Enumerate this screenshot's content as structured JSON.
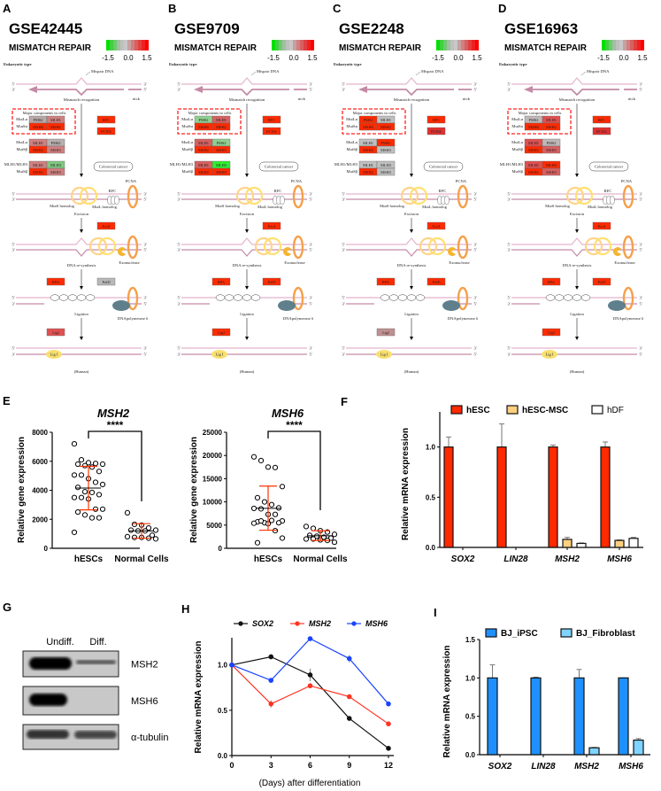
{
  "pathway": {
    "title": "MISMATCH REPAIR",
    "scale_ticks": [
      "-1.5",
      "0.0",
      "1.5"
    ],
    "scale_colors": [
      "#00e000",
      "#40d040",
      "#70c870",
      "#a0c0a0",
      "#c0c0c0",
      "#c8c8c8",
      "#c8a0a0",
      "#d08080",
      "#d86060",
      "#e04040",
      "#f02020",
      "#ff0000"
    ],
    "labels": {
      "eukaryotic": "Eukaryotic type",
      "mispair": "Mispair DNA",
      "nick": "nick",
      "recognition": "Mismatch recognition",
      "major": "Major components in cells",
      "mutla": "MutLα",
      "mutsa": "MutSα",
      "mutsb": "MutSβ",
      "mlh1mlh3": "MLH1/MLH3",
      "colorectal": "Colorectal cancer",
      "pcna_label": "PCNA",
      "rfc_label": "RFC",
      "muts_homolog": "MutS homolog",
      "mutl_homolog": "MutL homolog",
      "excision": "Excision",
      "resynthesis": "DNA re-synthesis",
      "exonuclease": "Exonuclease",
      "ligation": "Ligation",
      "polymerase": "DNApolymerase δ",
      "lig1_protein": "Lig I",
      "human": "(Human)",
      "five": "5'",
      "three": "3'"
    },
    "genes": [
      "PMS2",
      "MLH1",
      "MSH6",
      "MSH2",
      "MLH1",
      "PMS2",
      "MSH2",
      "MSH3",
      "MLH1",
      "MLH3",
      "MSH2",
      "MSH3",
      "RFC",
      "PCNA",
      "ExoI",
      "RPA",
      "PolD",
      "LigI"
    ],
    "panels": [
      {
        "label": "A",
        "dataset": "GSE42445",
        "colors": [
          "#b8a8a8",
          "#d08080",
          "#ff2a00",
          "#ff2a00",
          "#d08080",
          "#b8b0b0",
          "#ff2a00",
          "#d08080",
          "#d08080",
          "#80c880",
          "#ff2a00",
          "#d08080",
          "#ff2a00",
          "#ff2a00",
          "#ff2a00",
          "#ff2a00",
          "#b8b8b8",
          "#e05050"
        ]
      },
      {
        "label": "B",
        "dataset": "GSE9709",
        "colors": [
          "#90d090",
          "#d86060",
          "#ff2a00",
          "#ff2a00",
          "#d86060",
          "#90d090",
          "#ff2a00",
          "#ff2a00",
          "#d86060",
          "#30ee30",
          "#ff2a00",
          "#ff2a00",
          "#ff2a00",
          "#ff2a00",
          "#ff2a00",
          "#ff2a00",
          "#ff2a00",
          "#ff2a00"
        ]
      },
      {
        "label": "C",
        "dataset": "GSE2248",
        "colors": [
          "#ff2a00",
          "#c0c0c0",
          "#ff2a00",
          "#ff2a00",
          "#c0c0c0",
          "#ff2a00",
          "#ff2a00",
          "#c0c0c0",
          "#c0c0c0",
          "#c0c0c0",
          "#ff2a00",
          "#c0c0c0",
          "#ff2a00",
          "#e03030",
          "#ff2a00",
          "#ff2a00",
          "#ff2a00",
          "#c09090"
        ]
      },
      {
        "label": "D",
        "dataset": "GSE16963",
        "colors": [
          "#c0b8b8",
          "#e05050",
          "#ff2a00",
          "#ff2a00",
          "#e05050",
          "#c0b8b8",
          "#ff2a00",
          "#d86060",
          "#e05050",
          "#ff2a00",
          "#ff2a00",
          "#d86060",
          "#ff2a00",
          "#e03030",
          "#ff2a00",
          "#ff2a00",
          "#ff2a00",
          "#ff2a00"
        ]
      }
    ]
  },
  "panel_labels": {
    "E": "E",
    "F": "F",
    "G": "G",
    "H": "H",
    "I": "I"
  },
  "western": {
    "columns": [
      "Undiff.",
      "Diff."
    ],
    "bands": [
      "MSH2",
      "MSH6",
      "α-tubulin"
    ]
  },
  "chart_data": [
    {
      "type": "scatter",
      "title": "MSH2",
      "ylabel": "Relative gene expression",
      "categories": [
        "hESCs",
        "Normal Cells"
      ],
      "ylim": [
        0,
        8000
      ],
      "yticks": [
        "0",
        "2000",
        "4000",
        "6000",
        "8000"
      ],
      "significance": "****",
      "groups": [
        {
          "values": [
            7200,
            6100,
            5900,
            5850,
            5800,
            5800,
            5700,
            5600,
            5300,
            5050,
            5050,
            4800,
            4550,
            4400,
            4200,
            3900,
            3850,
            3700,
            3500,
            3500,
            3400,
            2700,
            2700,
            2500,
            2300,
            2100,
            2100,
            1100
          ],
          "mean": 4150,
          "sd": [
            2650,
            5650
          ]
        },
        {
          "values": [
            2450,
            1650,
            1600,
            1400,
            1250,
            1250,
            1200,
            1200,
            900,
            800,
            750,
            750,
            700,
            650
          ],
          "mean": 1200,
          "sd": [
            700,
            1700
          ]
        }
      ]
    },
    {
      "type": "scatter",
      "title": "MSH6",
      "ylabel": "Relative gene expression",
      "categories": [
        "hESCs",
        "Normal Cells"
      ],
      "ylim": [
        0,
        25000
      ],
      "yticks": [
        "0",
        "5000",
        "10000",
        "15000",
        "20000",
        "25000"
      ],
      "significance": "****",
      "groups": [
        {
          "values": [
            19700,
            18900,
            17500,
            17400,
            13300,
            10900,
            10000,
            9400,
            8700,
            8600,
            8500,
            7300,
            7300,
            5900,
            5700,
            5500,
            6000,
            5500,
            5400,
            5900,
            5300,
            3800,
            2200,
            1200
          ],
          "mean": 8600,
          "sd": [
            3900,
            13400
          ]
        },
        {
          "values": [
            4700,
            4300,
            3800,
            3500,
            3000,
            2800,
            2600,
            2400,
            2200,
            2000,
            2000,
            1800,
            1700,
            1300
          ],
          "mean": 2700,
          "sd": [
            1700,
            3800
          ]
        }
      ]
    },
    {
      "type": "bar",
      "ylabel": "Relative mRNA expression",
      "categories": [
        "SOX2",
        "LIN28",
        "MSH2",
        "MSH6"
      ],
      "ylim": [
        0,
        1.35
      ],
      "yticks": [
        "0.0",
        "0.5",
        "1.0"
      ],
      "legend": "top",
      "series": [
        {
          "name": "hESC",
          "color": "#ff2a00",
          "values": [
            1,
            1,
            1,
            1
          ],
          "errors": [
            0.1,
            0.23,
            0.02,
            0.05
          ]
        },
        {
          "name": "hESC-MSC",
          "color": "#ffd080",
          "values": [
            0,
            0,
            0.08,
            0.07
          ],
          "errors": [
            0,
            0,
            0.02,
            0.005
          ]
        },
        {
          "name": "hDF",
          "color": "#ffffff",
          "values": [
            0,
            0,
            0.04,
            0.09
          ],
          "errors": [
            0,
            0,
            0.005,
            0.01
          ]
        }
      ]
    },
    {
      "type": "line",
      "ylabel": "Relative mRNA expression",
      "xlabel": "(Days) after differentiation",
      "x": [
        0,
        3,
        6,
        9,
        12
      ],
      "xticks": [
        "0",
        "3",
        "6",
        "9",
        "12"
      ],
      "ylim": [
        0,
        1.3
      ],
      "yticks": [
        "0.0",
        "0.5",
        "1.0"
      ],
      "legend": "top",
      "series": [
        {
          "name": "SOX2",
          "color": "#111111",
          "values": [
            1,
            1.09,
            0.89,
            0.41,
            0.08
          ],
          "errors": [
            0.01,
            0.02,
            0.07,
            0.01,
            0.01
          ]
        },
        {
          "name": "MSH2",
          "color": "#ff3322",
          "values": [
            1,
            0.57,
            0.77,
            0.65,
            0.35
          ],
          "errors": [
            0.01,
            0.04,
            0.01,
            0.01,
            0.01
          ]
        },
        {
          "name": "MSH6",
          "color": "#1a44ff",
          "values": [
            1,
            0.83,
            1.29,
            1.07,
            0.57
          ],
          "errors": [
            0.01,
            0.01,
            0.01,
            0.04,
            0.01
          ]
        }
      ]
    },
    {
      "type": "bar",
      "ylabel": "Relative mRNA expression",
      "categories": [
        "SOX2",
        "LIN28",
        "MSH2",
        "MSH6"
      ],
      "ylim": [
        0,
        1.5
      ],
      "yticks": [
        "0.0",
        "0.5",
        "1.0",
        "1.5"
      ],
      "legend": "top",
      "series": [
        {
          "name": "BJ_iPSC",
          "color": "#1e90ff",
          "values": [
            1,
            1,
            1,
            1
          ],
          "errors": [
            0.17,
            0.01,
            0.11,
            0
          ]
        },
        {
          "name": "BJ_Fibroblast",
          "color": "#7fd4ff",
          "values": [
            0,
            0,
            0.09,
            0.19
          ],
          "errors": [
            0,
            0,
            0.005,
            0.02
          ]
        }
      ]
    }
  ]
}
